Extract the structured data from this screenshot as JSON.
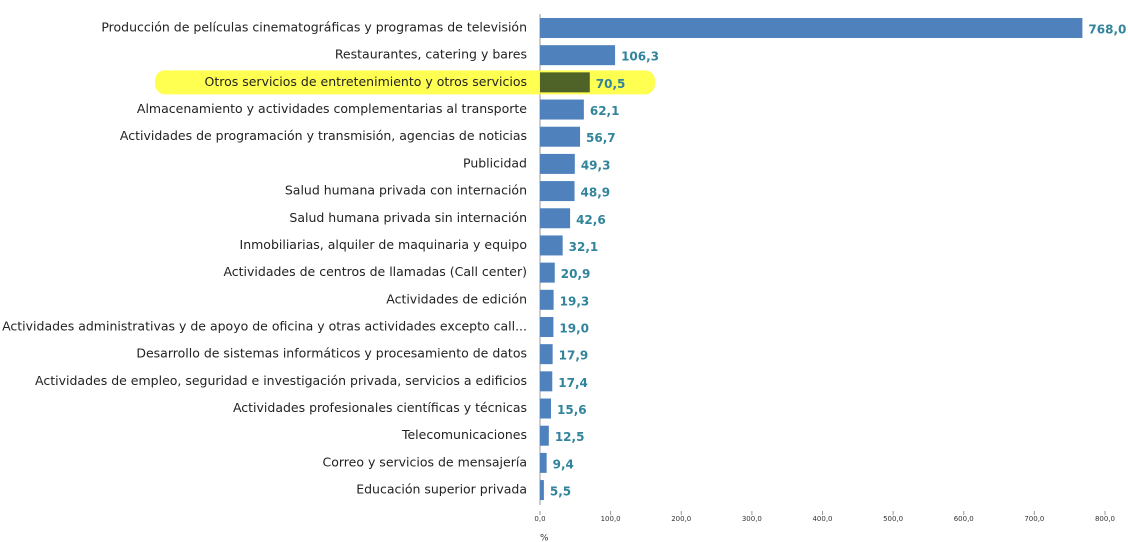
{
  "chart_data": {
    "type": "hbar",
    "categories": [
      "Producción de películas cinematográficas y programas de televisión",
      "Restaurantes, catering y bares",
      "Otros servicios de entretenimiento y otros servicios",
      "Almacenamiento y actividades complementarias al transporte",
      "Actividades de programación y transmisión,  agencias de noticias",
      "Publicidad",
      "Salud humana privada con internación",
      "Salud humana privada sin internación",
      "Inmobiliarias, alquiler de maquinaria y equipo",
      "Actividades de centros de llamadas (Call center)",
      "Actividades de edición",
      "Actividades administrativas y de apoyo de oficina y otras actividades excepto call...",
      "Desarrollo de sistemas informáticos y procesamiento de datos",
      "Actividades de empleo, seguridad e investigación privada, servicios a edificios",
      "Actividades profesionales científicas y técnicas",
      "Telecomunicaciones",
      "Correo y servicios de mensajería",
      "Educación superior privada"
    ],
    "values": [
      768.0,
      106.3,
      70.5,
      62.1,
      56.7,
      49.3,
      48.9,
      42.6,
      32.1,
      20.9,
      19.3,
      19.0,
      17.9,
      17.4,
      15.6,
      12.5,
      9.4,
      5.5
    ],
    "value_labels": [
      "768,0",
      "106,3",
      "70,5",
      "62,1",
      "56,7",
      "49,3",
      "48,9",
      "42,6",
      "32,1",
      "20,9",
      "19,3",
      "19,0",
      "17,9",
      "17,4",
      "15,6",
      "12,5",
      "9,4",
      "5,5"
    ],
    "colors": [
      "#4f81bd",
      "#4f81bd",
      "#4f6228",
      "#4f81bd",
      "#4f81bd",
      "#4f81bd",
      "#4f81bd",
      "#4f81bd",
      "#4f81bd",
      "#4f81bd",
      "#4f81bd",
      "#4f81bd",
      "#4f81bd",
      "#4f81bd",
      "#4f81bd",
      "#4f81bd",
      "#4f81bd",
      "#4f81bd"
    ],
    "label_backgrounds": [
      null,
      null,
      "#ffff33",
      null,
      null,
      null,
      null,
      null,
      null,
      null,
      null,
      null,
      null,
      null,
      null,
      null,
      null,
      null
    ],
    "xlim": [
      0,
      800
    ],
    "xticks": [
      {
        "value": 0,
        "label": "0,0"
      },
      {
        "value": 100,
        "label": "100,0"
      },
      {
        "value": 200,
        "label": "200,0"
      },
      {
        "value": 300,
        "label": "300,0"
      },
      {
        "value": 400,
        "label": "400,0"
      },
      {
        "value": 500,
        "label": "500,0"
      },
      {
        "value": 600,
        "label": "600,0"
      },
      {
        "value": 700,
        "label": "700,0"
      },
      {
        "value": 800,
        "label": "800,0"
      }
    ],
    "x_label": "%"
  }
}
